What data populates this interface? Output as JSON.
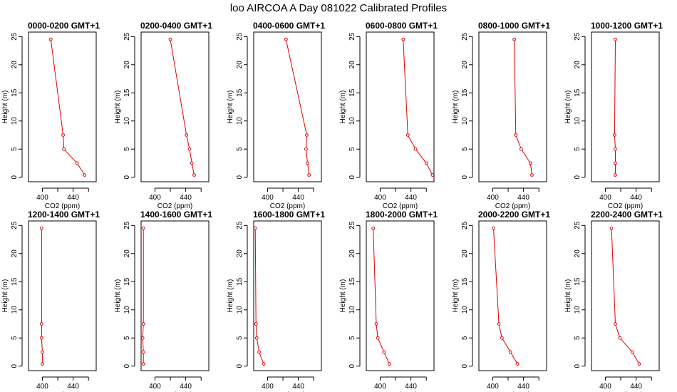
{
  "figure": {
    "title": "loo AIRCOA A  Day 081022  Calibrated Profiles"
  },
  "style": {
    "series_color": "#e00000"
  },
  "chart_data": [
    {
      "type": "line",
      "title": "0000-0200 GMT+1",
      "xlabel": "CO2 (ppm)",
      "ylabel": "Height (m)",
      "xlim": [
        382,
        470
      ],
      "ylim": [
        0,
        25
      ],
      "xticks": [
        "400",
        "440"
      ],
      "yticks": [
        "0",
        "5",
        "10",
        "15",
        "20",
        "25"
      ],
      "series": [
        {
          "x": [
            411,
            427,
            428,
            445,
            455
          ],
          "y": [
            24.5,
            7.5,
            5.0,
            2.5,
            0.4
          ]
        }
      ]
    },
    {
      "type": "line",
      "title": "0200-0400 GMT+1",
      "xlabel": "CO2 (ppm)",
      "ylabel": "Height (m)",
      "xlim": [
        382,
        470
      ],
      "ylim": [
        0,
        25
      ],
      "xticks": [
        "400",
        "440"
      ],
      "yticks": [
        "0",
        "5",
        "10",
        "15",
        "20",
        "25"
      ],
      "series": [
        {
          "x": [
            420,
            441,
            445,
            448,
            451
          ],
          "y": [
            24.5,
            7.5,
            5.0,
            2.5,
            0.4
          ]
        }
      ]
    },
    {
      "type": "line",
      "title": "0400-0600 GMT+1",
      "xlabel": "CO2 (ppm)",
      "ylabel": "Height (m)",
      "xlim": [
        382,
        470
      ],
      "ylim": [
        0,
        25
      ],
      "xticks": [
        "400",
        "440"
      ],
      "yticks": [
        "0",
        "5",
        "10",
        "15",
        "20",
        "25"
      ],
      "series": [
        {
          "x": [
            424,
            451,
            450,
            452,
            454
          ],
          "y": [
            24.5,
            7.5,
            5.0,
            2.5,
            0.4
          ]
        }
      ]
    },
    {
      "type": "line",
      "title": "0600-0800 GMT+1",
      "xlabel": "CO2 (ppm)",
      "ylabel": "Height (m)",
      "xlim": [
        382,
        470
      ],
      "ylim": [
        0,
        25
      ],
      "xticks": [
        "400",
        "440"
      ],
      "yticks": [
        "0",
        "5",
        "10",
        "15",
        "20",
        "25"
      ],
      "series": [
        {
          "x": [
            430,
            436,
            446,
            460,
            468
          ],
          "y": [
            24.5,
            7.5,
            5.0,
            2.5,
            0.4
          ]
        }
      ]
    },
    {
      "type": "line",
      "title": "0800-1000 GMT+1",
      "xlabel": "CO2 (ppm)",
      "ylabel": "Height (m)",
      "xlim": [
        382,
        470
      ],
      "ylim": [
        0,
        25
      ],
      "xticks": [
        "400",
        "440"
      ],
      "yticks": [
        "0",
        "5",
        "10",
        "15",
        "20",
        "25"
      ],
      "series": [
        {
          "x": [
            428,
            430,
            437,
            449,
            451
          ],
          "y": [
            24.5,
            7.5,
            5.0,
            2.5,
            0.4
          ]
        }
      ]
    },
    {
      "type": "line",
      "title": "1000-1200 GMT+1",
      "xlabel": "CO2 (ppm)",
      "ylabel": "Height (m)",
      "xlim": [
        382,
        470
      ],
      "ylim": [
        0,
        25
      ],
      "xticks": [
        "400",
        "440"
      ],
      "yticks": [
        "0",
        "5",
        "10",
        "15",
        "20",
        "25"
      ],
      "series": [
        {
          "x": [
            413,
            412,
            413,
            413,
            413
          ],
          "y": [
            24.5,
            7.5,
            5.0,
            2.5,
            0.4
          ]
        }
      ]
    },
    {
      "type": "line",
      "title": "1200-1400 GMT+1",
      "xlabel": "CO2 (ppm)",
      "ylabel": "Height (m)",
      "xlim": [
        382,
        470
      ],
      "ylim": [
        0,
        25
      ],
      "xticks": [
        "400",
        "440"
      ],
      "yticks": [
        "0",
        "5",
        "10",
        "15",
        "20",
        "25"
      ],
      "series": [
        {
          "x": [
            399,
            399,
            399,
            400,
            400
          ],
          "y": [
            24.5,
            7.5,
            5.0,
            2.5,
            0.4
          ]
        }
      ]
    },
    {
      "type": "line",
      "title": "1400-1600 GMT+1",
      "xlabel": "CO2 (ppm)",
      "ylabel": "Height (m)",
      "xlim": [
        382,
        470
      ],
      "ylim": [
        0,
        25
      ],
      "xticks": [
        "400",
        "440"
      ],
      "yticks": [
        "0",
        "5",
        "10",
        "15",
        "20",
        "25"
      ],
      "series": [
        {
          "x": [
            385,
            385,
            384,
            385,
            385
          ],
          "y": [
            24.5,
            7.5,
            5.0,
            2.5,
            0.4
          ]
        }
      ]
    },
    {
      "type": "line",
      "title": "1600-1800 GMT+1",
      "xlabel": "CO2 (ppm)",
      "ylabel": "Height (m)",
      "xlim": [
        382,
        470
      ],
      "ylim": [
        0,
        25
      ],
      "xticks": [
        "400",
        "440"
      ],
      "yticks": [
        "0",
        "5",
        "10",
        "15",
        "20",
        "25"
      ],
      "series": [
        {
          "x": [
            384,
            385,
            386,
            389,
            395
          ],
          "y": [
            24.5,
            7.5,
            5.0,
            2.5,
            0.4
          ]
        }
      ]
    },
    {
      "type": "line",
      "title": "1800-2000 GMT+1",
      "xlabel": "CO2 (ppm)",
      "ylabel": "Height (m)",
      "xlim": [
        382,
        470
      ],
      "ylim": [
        0,
        25
      ],
      "xticks": [
        "400",
        "440"
      ],
      "yticks": [
        "0",
        "5",
        "10",
        "15",
        "20",
        "25"
      ],
      "series": [
        {
          "x": [
            391,
            395,
            397,
            405,
            412
          ],
          "y": [
            24.5,
            7.5,
            5.0,
            2.5,
            0.4
          ]
        }
      ]
    },
    {
      "type": "line",
      "title": "2000-2200 GMT+1",
      "xlabel": "CO2 (ppm)",
      "ylabel": "Height (m)",
      "xlim": [
        382,
        470
      ],
      "ylim": [
        0,
        25
      ],
      "xticks": [
        "400",
        "440"
      ],
      "yticks": [
        "0",
        "5",
        "10",
        "15",
        "20",
        "25"
      ],
      "series": [
        {
          "x": [
            401,
            408,
            412,
            423,
            432
          ],
          "y": [
            24.5,
            7.5,
            5.0,
            2.5,
            0.4
          ]
        }
      ]
    },
    {
      "type": "line",
      "title": "2200-2400 GMT+1",
      "xlabel": "CO2 (ppm)",
      "ylabel": "Height (m)",
      "xlim": [
        382,
        470
      ],
      "ylim": [
        0,
        25
      ],
      "xticks": [
        "400",
        "440"
      ],
      "yticks": [
        "0",
        "5",
        "10",
        "15",
        "20",
        "25"
      ],
      "series": [
        {
          "x": [
            408,
            413,
            419,
            435,
            444
          ],
          "y": [
            24.5,
            7.5,
            5.0,
            2.5,
            0.4
          ]
        }
      ]
    }
  ]
}
